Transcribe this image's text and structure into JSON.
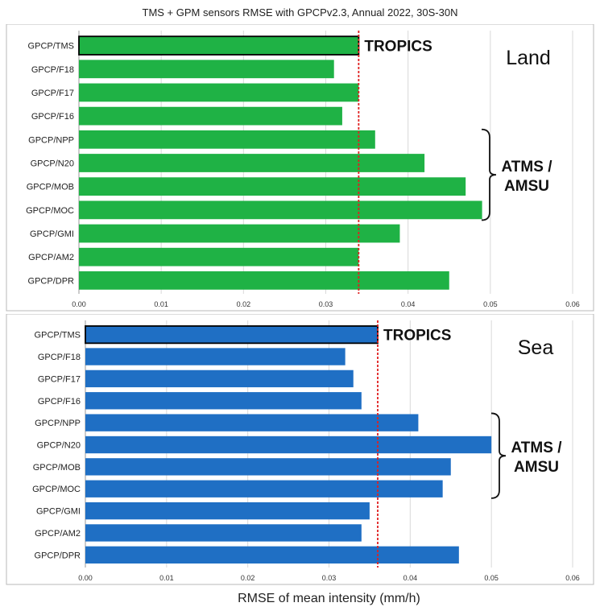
{
  "title": "TMS + GPM sensors RMSE with  GPCPv2.3, Annual 2022, 30S-30N",
  "xlabel": "RMSE of mean intensity (mm/h)",
  "colors": {
    "land": "#1fb245",
    "sea": "#1f6fc4",
    "outline": "#000000",
    "refline": "#e02020"
  },
  "chart_data": [
    {
      "type": "bar",
      "orientation": "horizontal",
      "panel_label": "Land",
      "categories": [
        "GPCP/TMS",
        "GPCP/F18",
        "GPCP/F17",
        "GPCP/F16",
        "GPCP/NPP",
        "GPCP/N20",
        "GPCP/MOB",
        "GPCP/MOC",
        "GPCP/GMI",
        "GPCP/AM2",
        "GPCP/DPR"
      ],
      "values": [
        0.034,
        0.031,
        0.034,
        0.032,
        0.036,
        0.042,
        0.047,
        0.049,
        0.039,
        0.034,
        0.045
      ],
      "xlim": [
        0,
        0.06
      ],
      "xticks": [
        "0.00",
        "0.01",
        "0.02",
        "0.03",
        "0.04",
        "0.05",
        "0.06"
      ],
      "reference_line": 0.034,
      "highlight_label": "TROPICS",
      "group_label": [
        "ATMS /",
        "AMSU"
      ],
      "grid": true
    },
    {
      "type": "bar",
      "orientation": "horizontal",
      "panel_label": "Sea",
      "categories": [
        "GPCP/TMS",
        "GPCP/F18",
        "GPCP/F17",
        "GPCP/F16",
        "GPCP/NPP",
        "GPCP/N20",
        "GPCP/MOB",
        "GPCP/MOC",
        "GPCP/GMI",
        "GPCP/AM2",
        "GPCP/DPR"
      ],
      "values": [
        0.036,
        0.032,
        0.033,
        0.034,
        0.041,
        0.05,
        0.045,
        0.044,
        0.035,
        0.034,
        0.046
      ],
      "xlim": [
        0,
        0.06
      ],
      "xticks": [
        "0.00",
        "0.01",
        "0.02",
        "0.03",
        "0.04",
        "0.05",
        "0.06"
      ],
      "reference_line": 0.036,
      "highlight_label": "TROPICS",
      "group_label": [
        "ATMS /",
        "AMSU"
      ],
      "grid": true
    }
  ]
}
